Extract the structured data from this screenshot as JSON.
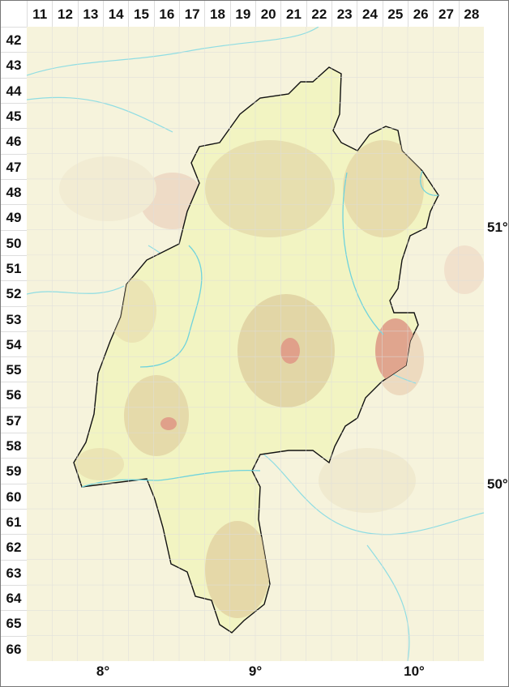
{
  "grid": {
    "columns": [
      "11",
      "12",
      "13",
      "14",
      "15",
      "16",
      "17",
      "18",
      "19",
      "20",
      "21",
      "22",
      "23",
      "24",
      "25",
      "26",
      "27",
      "28"
    ],
    "rows": [
      "42",
      "43",
      "44",
      "45",
      "46",
      "47",
      "48",
      "49",
      "50",
      "51",
      "52",
      "53",
      "54",
      "55",
      "56",
      "57",
      "58",
      "59",
      "60",
      "61",
      "62",
      "63",
      "64",
      "65",
      "66"
    ]
  },
  "longitude_labels": [
    "8°",
    "9°",
    "10°"
  ],
  "latitude_labels": [
    "51°",
    "50°"
  ],
  "colors": {
    "background": "#f6f3dc",
    "region_fill": "#f2f4c2",
    "highland": "#d9c89a",
    "peaks": "#e0a58e",
    "rivers": "#7fd8e0",
    "border": "#111111",
    "neighbor_border": "#888888"
  }
}
